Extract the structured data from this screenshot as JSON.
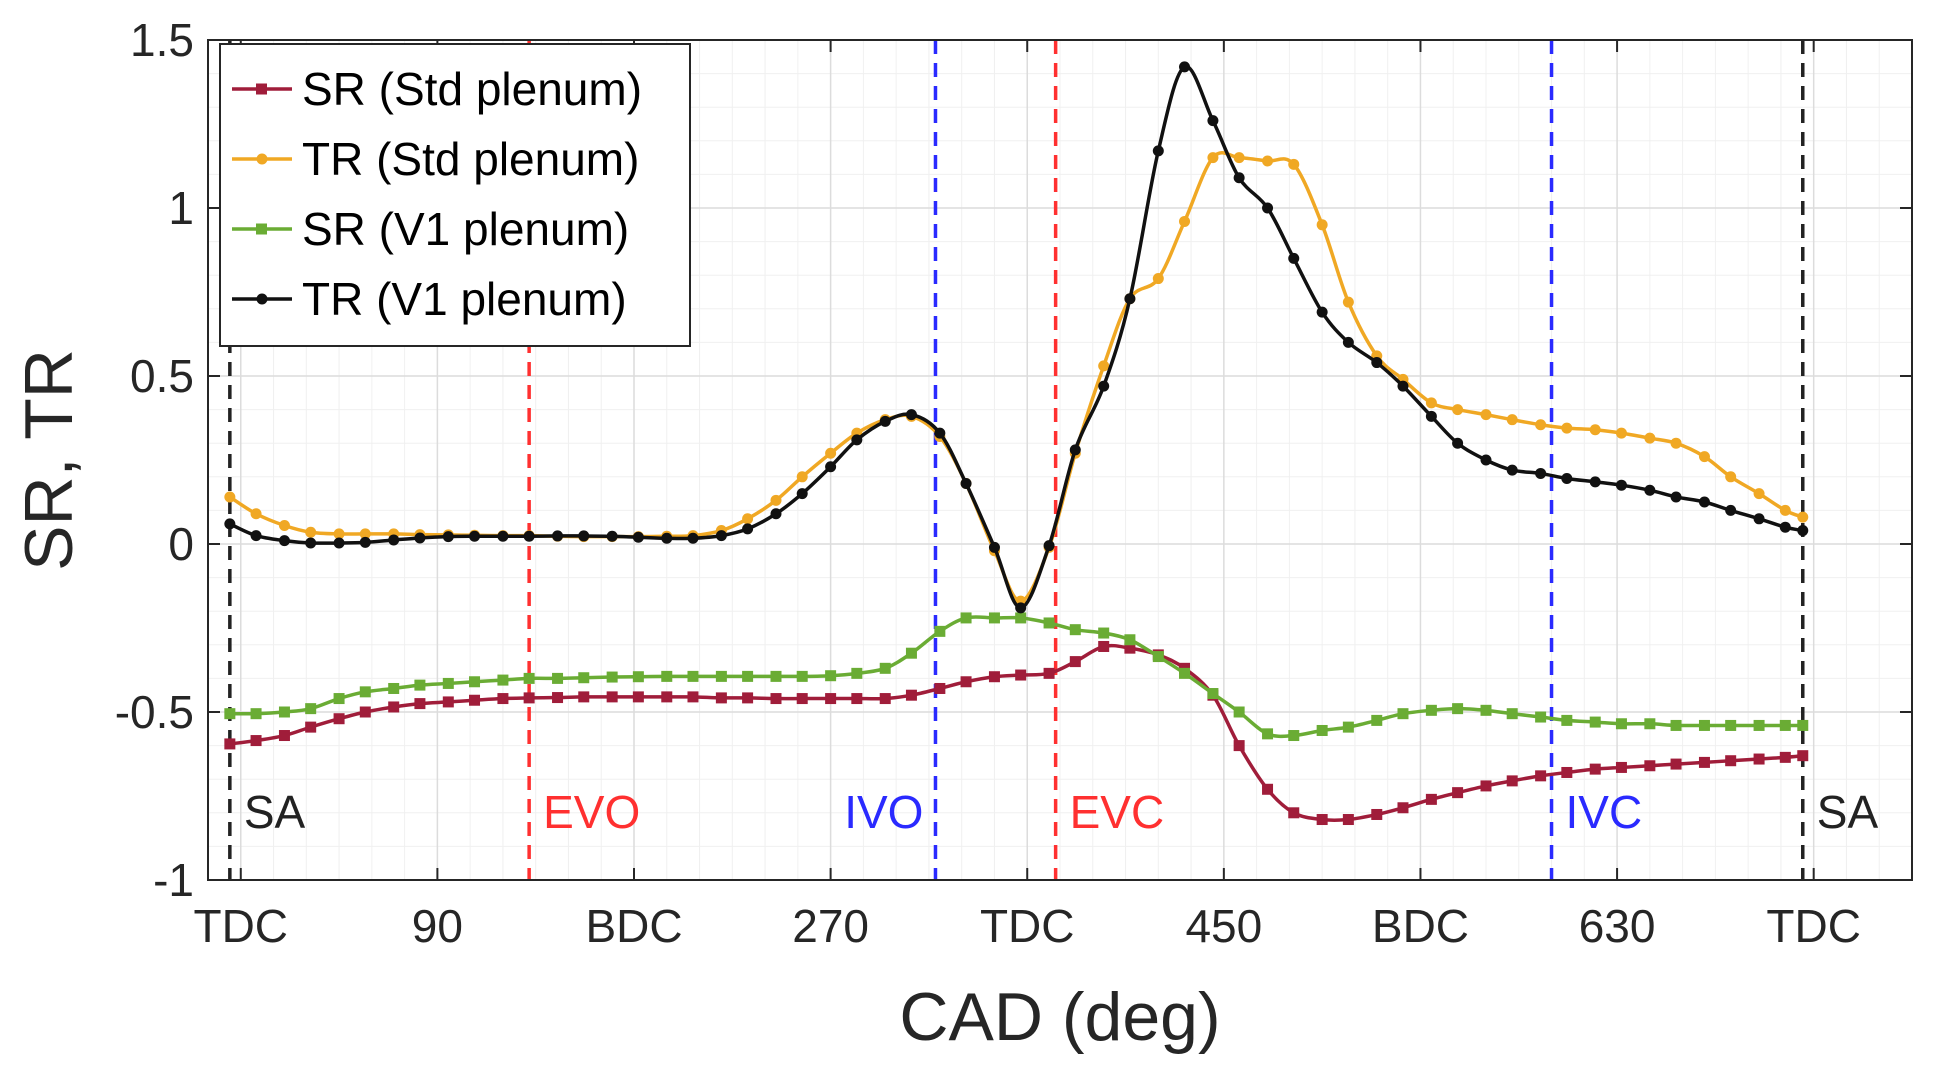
{
  "chart_data": {
    "type": "line",
    "xlabel": "CAD (deg)",
    "ylabel": "SR, TR",
    "xlim": [
      -15,
      765
    ],
    "ylim": [
      -1,
      1.5
    ],
    "x_ticks": [
      {
        "value": 0,
        "label": "TDC"
      },
      {
        "value": 90,
        "label": "90"
      },
      {
        "value": 180,
        "label": "BDC"
      },
      {
        "value": 270,
        "label": "270"
      },
      {
        "value": 360,
        "label": "TDC"
      },
      {
        "value": 450,
        "label": "450"
      },
      {
        "value": 540,
        "label": "BDC"
      },
      {
        "value": 630,
        "label": "630"
      },
      {
        "value": 720,
        "label": "TDC"
      }
    ],
    "y_ticks": [
      {
        "value": 1.5,
        "label": "1.5"
      },
      {
        "value": 1,
        "label": "1"
      },
      {
        "value": 0.5,
        "label": "0.5"
      },
      {
        "value": 0,
        "label": "0"
      },
      {
        "value": -0.5,
        "label": "-0.5"
      },
      {
        "value": -1,
        "label": "-1"
      }
    ],
    "grid": true,
    "legend_position": "top-left",
    "events": [
      {
        "x": -5,
        "label": "SA",
        "color": "#222222",
        "label_side": "right"
      },
      {
        "x": 132,
        "label": "EVO",
        "color": "#ff3030",
        "label_side": "right"
      },
      {
        "x": 318,
        "label": "IVO",
        "color": "#2a2aff",
        "label_side": "left"
      },
      {
        "x": 373,
        "label": "EVC",
        "color": "#ff3030",
        "label_side": "right"
      },
      {
        "x": 600,
        "label": "IVC",
        "color": "#2a2aff",
        "label_side": "right"
      },
      {
        "x": 715,
        "label": "SA",
        "color": "#222222",
        "label_side": "right"
      }
    ],
    "series": [
      {
        "name": "SR (Std plenum)",
        "color": "#a01d3a",
        "marker": "square",
        "x": [
          -5,
          7,
          20,
          32,
          45,
          57,
          70,
          82,
          95,
          107,
          120,
          132,
          145,
          157,
          170,
          182,
          195,
          207,
          220,
          232,
          245,
          257,
          270,
          282,
          295,
          307,
          320,
          332,
          345,
          357,
          370,
          382,
          395,
          407,
          420,
          432,
          445,
          457,
          470,
          482,
          495,
          507,
          520,
          532,
          545,
          557,
          570,
          582,
          595,
          607,
          620,
          632,
          645,
          657,
          670,
          682,
          695,
          707,
          715
        ],
        "y": [
          -0.595,
          -0.585,
          -0.57,
          -0.545,
          -0.52,
          -0.5,
          -0.485,
          -0.475,
          -0.47,
          -0.465,
          -0.46,
          -0.458,
          -0.457,
          -0.455,
          -0.455,
          -0.455,
          -0.455,
          -0.455,
          -0.458,
          -0.458,
          -0.46,
          -0.46,
          -0.46,
          -0.46,
          -0.46,
          -0.45,
          -0.43,
          -0.41,
          -0.395,
          -0.39,
          -0.385,
          -0.35,
          -0.305,
          -0.31,
          -0.33,
          -0.37,
          -0.45,
          -0.6,
          -0.73,
          -0.8,
          -0.82,
          -0.82,
          -0.805,
          -0.785,
          -0.76,
          -0.74,
          -0.72,
          -0.705,
          -0.69,
          -0.68,
          -0.67,
          -0.665,
          -0.66,
          -0.655,
          -0.65,
          -0.645,
          -0.64,
          -0.635,
          -0.63
        ]
      },
      {
        "name": "TR (Std plenum)",
        "color": "#f0a824",
        "marker": "circle",
        "x": [
          -5,
          7,
          20,
          32,
          45,
          57,
          70,
          82,
          95,
          107,
          120,
          132,
          145,
          157,
          170,
          182,
          195,
          207,
          220,
          232,
          245,
          257,
          270,
          282,
          295,
          307,
          320,
          332,
          345,
          357,
          370,
          382,
          395,
          407,
          420,
          432,
          445,
          457,
          470,
          482,
          495,
          507,
          520,
          532,
          545,
          557,
          570,
          582,
          595,
          607,
          620,
          632,
          645,
          657,
          670,
          682,
          695,
          707,
          715
        ],
        "y": [
          0.14,
          0.09,
          0.055,
          0.035,
          0.03,
          0.03,
          0.03,
          0.028,
          0.027,
          0.026,
          0.025,
          0.025,
          0.023,
          0.022,
          0.022,
          0.022,
          0.023,
          0.025,
          0.04,
          0.075,
          0.13,
          0.2,
          0.27,
          0.33,
          0.37,
          0.38,
          0.32,
          0.18,
          -0.02,
          -0.17,
          -0.01,
          0.27,
          0.53,
          0.73,
          0.79,
          0.96,
          1.15,
          1.15,
          1.14,
          1.13,
          0.95,
          0.72,
          0.56,
          0.49,
          0.42,
          0.4,
          0.385,
          0.37,
          0.355,
          0.345,
          0.34,
          0.33,
          0.315,
          0.3,
          0.26,
          0.2,
          0.15,
          0.1,
          0.08
        ]
      },
      {
        "name": "SR (V1 plenum)",
        "color": "#6aac34",
        "marker": "square",
        "x": [
          -5,
          7,
          20,
          32,
          45,
          57,
          70,
          82,
          95,
          107,
          120,
          132,
          145,
          157,
          170,
          182,
          195,
          207,
          220,
          232,
          245,
          257,
          270,
          282,
          295,
          307,
          320,
          332,
          345,
          357,
          370,
          382,
          395,
          407,
          420,
          432,
          445,
          457,
          470,
          482,
          495,
          507,
          520,
          532,
          545,
          557,
          570,
          582,
          595,
          607,
          620,
          632,
          645,
          657,
          670,
          682,
          695,
          707,
          715
        ],
        "y": [
          -0.505,
          -0.505,
          -0.5,
          -0.49,
          -0.46,
          -0.44,
          -0.43,
          -0.42,
          -0.415,
          -0.41,
          -0.405,
          -0.4,
          -0.4,
          -0.398,
          -0.396,
          -0.395,
          -0.394,
          -0.394,
          -0.394,
          -0.394,
          -0.394,
          -0.394,
          -0.392,
          -0.385,
          -0.37,
          -0.325,
          -0.26,
          -0.22,
          -0.22,
          -0.22,
          -0.235,
          -0.255,
          -0.265,
          -0.285,
          -0.335,
          -0.385,
          -0.445,
          -0.5,
          -0.565,
          -0.57,
          -0.555,
          -0.545,
          -0.525,
          -0.505,
          -0.495,
          -0.49,
          -0.495,
          -0.505,
          -0.515,
          -0.525,
          -0.53,
          -0.535,
          -0.535,
          -0.54,
          -0.54,
          -0.54,
          -0.54,
          -0.54,
          -0.54
        ]
      },
      {
        "name": "TR (V1 plenum)",
        "color": "#111111",
        "marker": "circle",
        "x": [
          -5,
          7,
          20,
          32,
          45,
          57,
          70,
          82,
          95,
          107,
          120,
          132,
          145,
          157,
          170,
          182,
          195,
          207,
          220,
          232,
          245,
          257,
          270,
          282,
          295,
          307,
          320,
          332,
          345,
          357,
          370,
          382,
          395,
          407,
          420,
          432,
          445,
          457,
          470,
          482,
          495,
          507,
          520,
          532,
          545,
          557,
          570,
          582,
          595,
          607,
          620,
          632,
          645,
          657,
          670,
          682,
          695,
          707,
          715
        ],
        "y": [
          0.06,
          0.025,
          0.01,
          0.003,
          0.003,
          0.005,
          0.012,
          0.018,
          0.022,
          0.023,
          0.023,
          0.023,
          0.024,
          0.024,
          0.023,
          0.02,
          0.017,
          0.017,
          0.025,
          0.045,
          0.09,
          0.15,
          0.23,
          0.31,
          0.365,
          0.385,
          0.33,
          0.18,
          -0.01,
          -0.19,
          -0.005,
          0.28,
          0.47,
          0.73,
          1.17,
          1.42,
          1.26,
          1.09,
          1,
          0.85,
          0.69,
          0.6,
          0.54,
          0.47,
          0.38,
          0.3,
          0.25,
          0.22,
          0.21,
          0.195,
          0.185,
          0.175,
          0.16,
          0.14,
          0.125,
          0.1,
          0.075,
          0.05,
          0.04
        ]
      }
    ]
  }
}
